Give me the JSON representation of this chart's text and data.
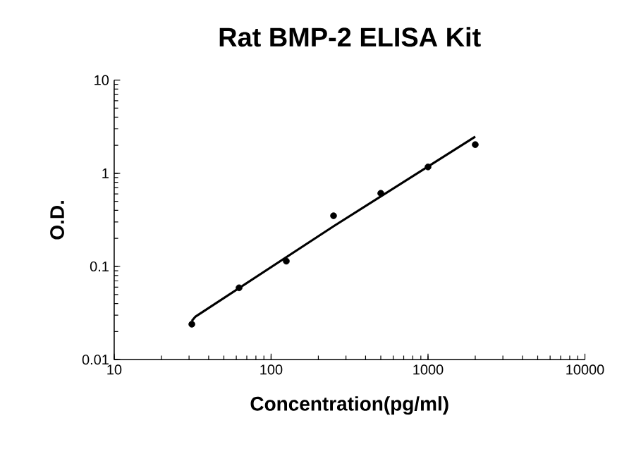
{
  "chart_data": {
    "type": "scatter",
    "title": "Rat BMP-2 ELISA Kit",
    "xlabel": "Concentration(pg/ml)",
    "ylabel": "O.D.",
    "log": "xy",
    "grid": false,
    "xlim": [
      10,
      10000
    ],
    "xticks": [
      10,
      100,
      1000,
      10000
    ],
    "ylim": [
      0.01,
      10
    ],
    "yticks": [
      0.01,
      0.1,
      1,
      10
    ],
    "series": [
      {
        "marker": "circle",
        "color": "#000000",
        "x": [
          31.25,
          62.5,
          125,
          250,
          500,
          1000,
          2000
        ],
        "values": [
          0.024,
          0.059,
          0.114,
          0.35,
          0.61,
          1.17,
          2.03
        ]
      },
      {
        "type": "line",
        "marker": "none",
        "line_style": "solid",
        "color": "#000000",
        "x": [
          31.25,
          33,
          250,
          2000
        ],
        "values": [
          0.026,
          0.029,
          0.27,
          2.47
        ]
      }
    ]
  }
}
